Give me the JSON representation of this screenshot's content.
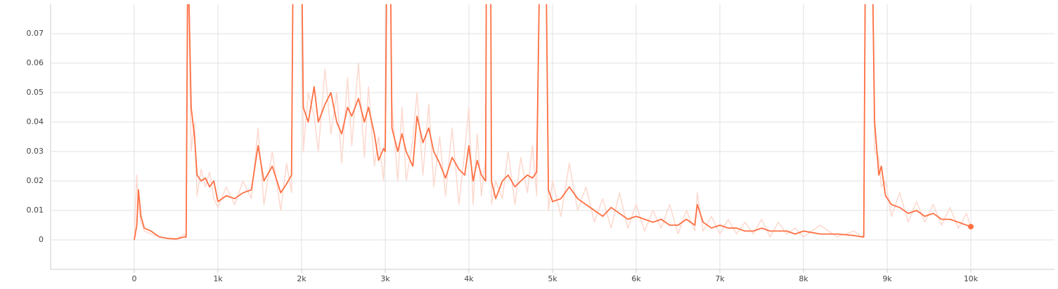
{
  "chart_data": {
    "type": "line",
    "x": [
      0,
      30,
      50,
      80,
      120,
      200,
      300,
      400,
      500,
      600,
      620,
      640,
      680,
      720,
      750,
      800,
      850,
      900,
      950,
      1000,
      1100,
      1200,
      1300,
      1400,
      1480,
      1550,
      1650,
      1750,
      1820,
      1880,
      1900,
      2000,
      2020,
      2080,
      2150,
      2200,
      2280,
      2350,
      2420,
      2480,
      2550,
      2600,
      2680,
      2750,
      2800,
      2870,
      2920,
      2980,
      3000,
      3020,
      3060,
      3080,
      3150,
      3200,
      3250,
      3330,
      3380,
      3450,
      3520,
      3580,
      3650,
      3720,
      3800,
      3880,
      3950,
      4000,
      4050,
      4100,
      4150,
      4200,
      4210,
      4260,
      4270,
      4320,
      4400,
      4470,
      4550,
      4620,
      4700,
      4760,
      4810,
      4850,
      4920,
      4950,
      5000,
      5100,
      5200,
      5300,
      5400,
      5500,
      5600,
      5700,
      5800,
      5900,
      6000,
      6100,
      6200,
      6300,
      6400,
      6500,
      6600,
      6700,
      6730,
      6800,
      6900,
      7000,
      7100,
      7200,
      7300,
      7400,
      7500,
      7600,
      7700,
      7800,
      7900,
      8000,
      8200,
      8400,
      8600,
      8700,
      8720,
      8740,
      8820,
      8850,
      8900,
      8930,
      8980,
      9050,
      9150,
      9250,
      9350,
      9450,
      9550,
      9650,
      9750,
      9850,
      9950,
      10000
    ],
    "series": [
      {
        "color": "#fcd9cf",
        "values": [
          0,
          0.022,
          0.012,
          0.006,
          0.003,
          0.002,
          0.001,
          0.0004,
          0.0002,
          0.002,
          0.001,
          0.1,
          0.03,
          0.04,
          0.015,
          0.024,
          0.018,
          0.023,
          0.014,
          0.011,
          0.018,
          0.012,
          0.02,
          0.014,
          0.038,
          0.012,
          0.03,
          0.01,
          0.026,
          0.016,
          0.1,
          0.1,
          0.03,
          0.05,
          0.042,
          0.03,
          0.058,
          0.036,
          0.05,
          0.026,
          0.055,
          0.032,
          0.06,
          0.028,
          0.052,
          0.025,
          0.035,
          0.02,
          0.034,
          0.1,
          0.1,
          0.046,
          0.02,
          0.045,
          0.02,
          0.034,
          0.05,
          0.022,
          0.046,
          0.018,
          0.035,
          0.015,
          0.038,
          0.012,
          0.03,
          0.045,
          0.012,
          0.036,
          0.015,
          0.028,
          0.1,
          0.1,
          0.012,
          0.02,
          0.014,
          0.03,
          0.012,
          0.028,
          0.016,
          0.032,
          0.015,
          0.1,
          0.1,
          0.01,
          0.02,
          0.008,
          0.026,
          0.01,
          0.018,
          0.006,
          0.014,
          0.004,
          0.016,
          0.004,
          0.012,
          0.003,
          0.01,
          0.004,
          0.012,
          0.002,
          0.01,
          0.003,
          0.016,
          0.003,
          0.008,
          0.002,
          0.007,
          0.002,
          0.006,
          0.002,
          0.007,
          0.001,
          0.006,
          0.002,
          0.004,
          0.001,
          0.005,
          0.001,
          0.003,
          0.001,
          0.002,
          0.1,
          0.1,
          0.03,
          0.028,
          0.018,
          0.02,
          0.008,
          0.016,
          0.006,
          0.013,
          0.006,
          0.012,
          0.005,
          0.011,
          0.004,
          0.009,
          0.004
        ]
      },
      {
        "color": "#ff7043",
        "values": [
          0,
          0.005,
          0.017,
          0.008,
          0.004,
          0.003,
          0.001,
          0.0005,
          0.0003,
          0.001,
          0.001,
          0.1,
          0.045,
          0.035,
          0.022,
          0.02,
          0.021,
          0.018,
          0.02,
          0.013,
          0.015,
          0.014,
          0.016,
          0.017,
          0.032,
          0.02,
          0.025,
          0.016,
          0.019,
          0.022,
          0.1,
          0.1,
          0.045,
          0.04,
          0.052,
          0.04,
          0.046,
          0.05,
          0.04,
          0.036,
          0.045,
          0.042,
          0.048,
          0.04,
          0.045,
          0.036,
          0.027,
          0.031,
          0.03,
          0.1,
          0.1,
          0.038,
          0.03,
          0.036,
          0.03,
          0.025,
          0.042,
          0.033,
          0.038,
          0.03,
          0.026,
          0.021,
          0.028,
          0.024,
          0.022,
          0.032,
          0.02,
          0.027,
          0.022,
          0.02,
          0.1,
          0.1,
          0.02,
          0.014,
          0.02,
          0.022,
          0.018,
          0.02,
          0.022,
          0.021,
          0.023,
          0.1,
          0.1,
          0.017,
          0.013,
          0.014,
          0.018,
          0.014,
          0.012,
          0.01,
          0.008,
          0.011,
          0.009,
          0.007,
          0.008,
          0.007,
          0.006,
          0.007,
          0.005,
          0.005,
          0.007,
          0.005,
          0.012,
          0.006,
          0.004,
          0.005,
          0.004,
          0.004,
          0.003,
          0.003,
          0.004,
          0.003,
          0.003,
          0.003,
          0.002,
          0.003,
          0.002,
          0.002,
          0.0015,
          0.001,
          0.001,
          0.1,
          0.1,
          0.04,
          0.022,
          0.025,
          0.015,
          0.012,
          0.011,
          0.009,
          0.01,
          0.008,
          0.009,
          0.007,
          0.007,
          0.006,
          0.005,
          0.0045
        ]
      }
    ],
    "xlim": [
      -1000,
      11000
    ],
    "ylim": [
      -0.01,
      0.08
    ],
    "xticks": [
      {
        "value": 0,
        "label": "0"
      },
      {
        "value": 1000,
        "label": "1k"
      },
      {
        "value": 2000,
        "label": "2k"
      },
      {
        "value": 3000,
        "label": "3k"
      },
      {
        "value": 4000,
        "label": "4k"
      },
      {
        "value": 5000,
        "label": "5k"
      },
      {
        "value": 6000,
        "label": "6k"
      },
      {
        "value": 7000,
        "label": "7k"
      },
      {
        "value": 8000,
        "label": "8k"
      },
      {
        "value": 9000,
        "label": "9k"
      },
      {
        "value": 10000,
        "label": "10k"
      }
    ],
    "yticks": [
      0,
      0.01,
      0.02,
      0.03,
      0.04,
      0.05,
      0.06,
      0.07
    ],
    "grid": true
  }
}
